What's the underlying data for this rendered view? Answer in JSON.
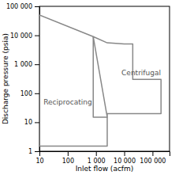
{
  "chart_data": {
    "type": "line",
    "xlabel": "Inlet flow (acfm)",
    "ylabel": "Discharge pressure (psia)",
    "log": true,
    "grid": false,
    "xlim": [
      10,
      400000
    ],
    "ylim": [
      1,
      100000
    ],
    "xticks": [
      10,
      100,
      {
        "value": 1000,
        "label": "1 000"
      },
      {
        "value": 10000,
        "label": "10 000"
      },
      {
        "value": 100000,
        "label": "100 000"
      }
    ],
    "yticks": [
      1,
      10,
      100,
      {
        "value": 1000,
        "label": "1 000"
      },
      {
        "value": 10000,
        "label": "10 000"
      },
      {
        "value": 100000,
        "label": "100 000"
      }
    ],
    "series": [
      {
        "color": "#888888",
        "x": [
          10,
          800,
          800,
          800,
          800,
          2500,
          2500,
          10,
          10
        ],
        "values": [
          50000,
          9000,
          9000,
          2000,
          15,
          15,
          1.5,
          1.5,
          50000
        ]
      },
      {
        "color": "#888888",
        "x": [
          800,
          2500,
          10000,
          20000,
          20000,
          200000,
          200000,
          200000,
          2500,
          2500,
          800
        ],
        "values": [
          9000,
          5500,
          5000,
          5000,
          300,
          300,
          80,
          20,
          20,
          15,
          9000
        ]
      }
    ],
    "annotations": [
      {
        "text": "Reciprocating",
        "x": 14,
        "y": 50
      },
      {
        "text": "Centrifugal",
        "x": 8000,
        "y": 500
      }
    ]
  }
}
